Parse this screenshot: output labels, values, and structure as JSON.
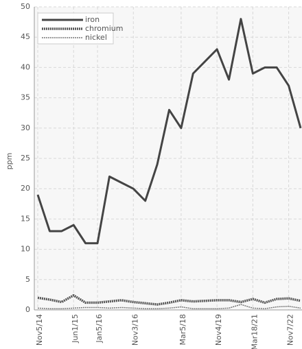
{
  "chart_data": {
    "type": "line",
    "y_label": "ppm",
    "categories": [
      "Nov5/14",
      null,
      null,
      "Jun1/15",
      null,
      "Jan5/16",
      null,
      null,
      "Nov3/16",
      null,
      null,
      null,
      "Mar5/18",
      null,
      null,
      "Nov4/19",
      null,
      null,
      "Mar18/21",
      null,
      null,
      "Nov7/22",
      null
    ],
    "series": [
      {
        "name": "iron",
        "color": "#444444",
        "values": [
          19,
          13,
          13,
          14,
          11,
          11,
          22,
          21,
          20,
          18,
          24,
          33,
          30,
          39,
          41,
          43,
          38,
          48,
          39,
          40,
          40,
          37,
          30
        ]
      },
      {
        "name": "chromium",
        "color": "#555555",
        "values": [
          2,
          1.7,
          1.3,
          2.4,
          1.2,
          1.2,
          1.4,
          1.6,
          1.3,
          1.1,
          0.9,
          1.2,
          1.6,
          1.4,
          1.5,
          1.6,
          1.6,
          1.3,
          1.8,
          1.2,
          1.8,
          1.9,
          1.5
        ]
      },
      {
        "name": "nickel",
        "color": "#777777",
        "values": [
          0.3,
          0.2,
          0.2,
          0.3,
          0.4,
          0.4,
          0.3,
          0.4,
          0.3,
          0.2,
          0.2,
          0.3,
          0.5,
          0.2,
          0.2,
          0.2,
          0.3,
          0.9,
          0.3,
          0.2,
          0.5,
          0.6,
          0.3
        ]
      }
    ],
    "ylim": [
      0,
      50
    ],
    "yticks": [
      0,
      5,
      10,
      15,
      20,
      25,
      30,
      35,
      40,
      45,
      50
    ],
    "grid": true,
    "legend": "top-left"
  }
}
